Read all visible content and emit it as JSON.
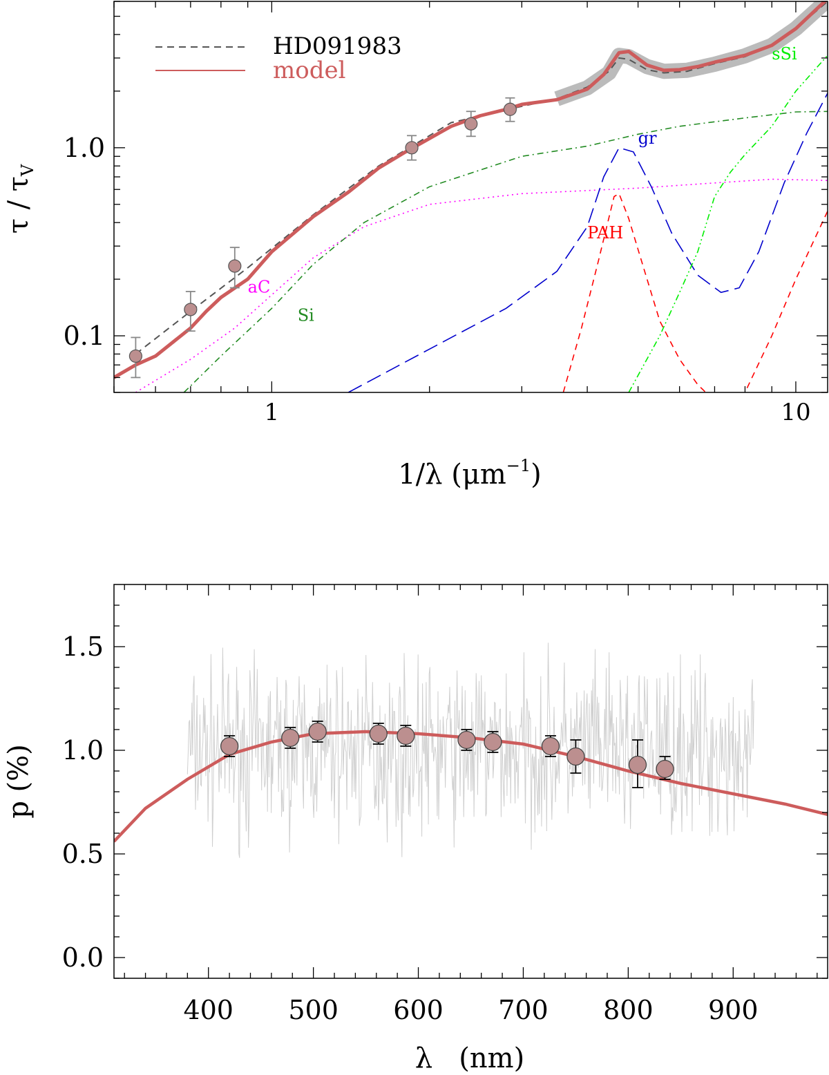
{
  "chart_data": [
    {
      "type": "line",
      "title": "",
      "xlabel": "1/λ (μm",
      "xlabel_sup": "−1",
      "xlabel_close": ")",
      "ylabel": "τ / τ",
      "ylabel_sub": "V",
      "xscale": "log",
      "yscale": "log",
      "xlim": [
        0.5,
        11.5
      ],
      "ylim": [
        0.05,
        6
      ],
      "xticks": [
        {
          "v": 1,
          "label": "1"
        },
        {
          "v": 10,
          "label": "10"
        }
      ],
      "yticks": [
        {
          "v": 0.1,
          "label": "0.1"
        },
        {
          "v": 1.0,
          "label": "1.0"
        }
      ],
      "legend": {
        "position": "top-left",
        "entries": [
          {
            "label": "HD091983",
            "color": "#555555",
            "style": "dashed"
          },
          {
            "label": "model",
            "color": "#cd5c5c",
            "style": "solid"
          }
        ]
      },
      "series": [
        {
          "name": "HD091983",
          "role": "observed",
          "color": "#555555",
          "x": [
            0.55,
            0.7,
            0.9,
            1.2,
            1.6,
            2.2,
            3.0,
            3.5,
            4.0,
            4.4,
            4.6,
            4.8,
            5.2,
            5.6,
            6.2,
            7.0,
            8.0,
            9.0,
            10.0,
            11.5
          ],
          "y": [
            0.08,
            0.135,
            0.23,
            0.44,
            0.8,
            1.36,
            1.66,
            1.82,
            2.1,
            2.55,
            3.0,
            2.95,
            2.6,
            2.5,
            2.55,
            2.8,
            3.05,
            3.5,
            4.3,
            6.0
          ]
        },
        {
          "name": "model",
          "role": "model",
          "color": "#cd5c5c",
          "x": [
            0.5,
            0.55,
            0.6,
            0.7,
            0.75,
            0.8,
            0.9,
            1.0,
            1.2,
            1.4,
            1.6,
            1.8,
            2.0,
            2.2,
            2.5,
            2.8,
            3.0,
            3.5,
            4.0,
            4.3,
            4.6,
            4.8,
            5.2,
            5.6,
            6.0,
            6.5,
            7.0,
            8.0,
            9.0,
            10.0,
            11.5
          ],
          "y": [
            0.06,
            0.07,
            0.078,
            0.11,
            0.135,
            0.16,
            0.2,
            0.28,
            0.43,
            0.58,
            0.78,
            0.95,
            1.12,
            1.3,
            1.48,
            1.6,
            1.7,
            1.8,
            2.05,
            2.45,
            3.2,
            3.25,
            2.75,
            2.58,
            2.6,
            2.7,
            2.85,
            3.1,
            3.5,
            4.3,
            6.2
          ]
        },
        {
          "name": "aC",
          "role": "component",
          "color": "#ff00ff",
          "style": "dotted",
          "x": [
            0.55,
            0.7,
            0.85,
            1.0,
            1.2,
            1.5,
            2.0,
            3.0,
            5.0,
            7.0,
            9.0,
            11.5
          ],
          "y": [
            0.05,
            0.075,
            0.11,
            0.165,
            0.26,
            0.38,
            0.5,
            0.57,
            0.61,
            0.65,
            0.68,
            0.67
          ]
        },
        {
          "name": "Si",
          "role": "component",
          "color": "#228b22",
          "style": "dashdot",
          "x": [
            0.68,
            0.8,
            1.0,
            1.2,
            1.5,
            2.0,
            3.0,
            4.0,
            5.0,
            6.0,
            8.0,
            10.0,
            11.5
          ],
          "y": [
            0.05,
            0.078,
            0.14,
            0.24,
            0.4,
            0.62,
            0.9,
            1.02,
            1.18,
            1.3,
            1.44,
            1.55,
            1.56
          ]
        },
        {
          "name": "gr",
          "role": "component",
          "color": "#0000cd",
          "style": "longdash",
          "x": [
            1.4,
            2.0,
            2.8,
            3.5,
            4.0,
            4.3,
            4.6,
            4.9,
            5.3,
            5.8,
            6.5,
            7.2,
            7.8,
            8.5,
            9.5,
            10.5,
            11.5
          ],
          "y": [
            0.05,
            0.085,
            0.14,
            0.22,
            0.38,
            0.7,
            1.0,
            0.95,
            0.62,
            0.35,
            0.21,
            0.17,
            0.18,
            0.28,
            0.65,
            1.2,
            1.95
          ]
        },
        {
          "name": "PAH",
          "role": "component",
          "color": "#ff0000",
          "style": "dashed",
          "x": [
            3.6,
            3.9,
            4.2,
            4.5,
            4.6,
            4.8,
            5.1,
            5.5,
            6.0,
            6.5,
            7.0,
            7.5,
            8.0,
            9.0,
            10.0,
            11.5
          ],
          "y": [
            0.05,
            0.11,
            0.25,
            0.55,
            0.57,
            0.42,
            0.24,
            0.12,
            0.075,
            0.055,
            0.045,
            0.04,
            0.05,
            0.1,
            0.2,
            0.46
          ]
        },
        {
          "name": "sSi",
          "role": "component",
          "color": "#00ee00",
          "style": "dashdotdot",
          "x": [
            4.8,
            5.5,
            6.0,
            6.5,
            7.0,
            7.5,
            8.0,
            9.0,
            10.0,
            11.5
          ],
          "y": [
            0.05,
            0.1,
            0.17,
            0.28,
            0.55,
            0.74,
            0.92,
            1.3,
            2.0,
            3.1
          ]
        },
        {
          "name": "UV data band",
          "role": "band",
          "color": "#bbbbbb",
          "x": [
            3.5,
            4.0,
            4.4,
            4.6,
            4.8,
            5.2,
            5.6,
            6.2,
            7.0,
            8.0,
            9.0,
            10.0,
            11.5
          ],
          "y": [
            1.82,
            2.08,
            2.5,
            3.1,
            3.05,
            2.7,
            2.55,
            2.58,
            2.78,
            3.08,
            3.5,
            4.3,
            6.1
          ]
        }
      ],
      "points": [
        {
          "x": 0.55,
          "y": 0.078,
          "err": [
            0.06,
            0.098
          ]
        },
        {
          "x": 0.7,
          "y": 0.138,
          "err": [
            0.106,
            0.172
          ]
        },
        {
          "x": 0.85,
          "y": 0.235,
          "err": [
            0.18,
            0.295
          ]
        },
        {
          "x": 1.85,
          "y": 1.0,
          "err": [
            0.86,
            1.16
          ]
        },
        {
          "x": 2.4,
          "y": 1.34,
          "err": [
            1.15,
            1.56
          ]
        },
        {
          "x": 2.85,
          "y": 1.6,
          "err": [
            1.38,
            1.84
          ]
        }
      ],
      "annotations": [
        {
          "text": "aC",
          "x": 0.9,
          "y": 0.17,
          "color": "#ff00ff"
        },
        {
          "text": "Si",
          "x": 1.12,
          "y": 0.12,
          "color": "#228b22"
        },
        {
          "text": "gr",
          "x": 5.0,
          "y": 1.05,
          "color": "#0000cd"
        },
        {
          "text": "PAH",
          "x": 4.0,
          "y": 0.33,
          "color": "#ff0000"
        },
        {
          "text": "sSi",
          "x": 9.0,
          "y": 2.95,
          "color": "#00ee00"
        }
      ]
    },
    {
      "type": "scatter",
      "title": "",
      "xlabel": "λ   (nm)",
      "ylabel": "p (%)",
      "xlim": [
        310,
        990
      ],
      "ylim": [
        -0.1,
        1.8
      ],
      "xticks": [
        {
          "v": 400,
          "label": "400"
        },
        {
          "v": 500,
          "label": "500"
        },
        {
          "v": 600,
          "label": "600"
        },
        {
          "v": 700,
          "label": "700"
        },
        {
          "v": 800,
          "label": "800"
        },
        {
          "v": 900,
          "label": "900"
        }
      ],
      "yticks": [
        {
          "v": 0.0,
          "label": "0.0"
        },
        {
          "v": 0.5,
          "label": "0.5"
        },
        {
          "v": 1.0,
          "label": "1.0"
        },
        {
          "v": 1.5,
          "label": "1.5"
        }
      ],
      "series": [
        {
          "name": "model",
          "role": "model",
          "color": "#cd5c5c",
          "x": [
            310,
            340,
            380,
            420,
            460,
            500,
            550,
            600,
            650,
            700,
            750,
            800,
            850,
            900,
            950,
            990
          ],
          "y": [
            0.56,
            0.72,
            0.86,
            0.98,
            1.04,
            1.08,
            1.09,
            1.08,
            1.06,
            1.03,
            0.97,
            0.9,
            0.84,
            0.79,
            0.74,
            0.69
          ]
        },
        {
          "name": "spectrum",
          "role": "noise",
          "color": "#cccccc",
          "x_range": [
            380,
            920
          ],
          "mean": 1.0,
          "spread": 0.32
        }
      ],
      "points": [
        {
          "x": 420,
          "y": 1.02,
          "err": [
            0.97,
            1.07
          ]
        },
        {
          "x": 478,
          "y": 1.06,
          "err": [
            1.01,
            1.11
          ]
        },
        {
          "x": 504,
          "y": 1.09,
          "err": [
            1.04,
            1.14
          ]
        },
        {
          "x": 562,
          "y": 1.08,
          "err": [
            1.03,
            1.13
          ]
        },
        {
          "x": 588,
          "y": 1.07,
          "err": [
            1.02,
            1.12
          ]
        },
        {
          "x": 646,
          "y": 1.05,
          "err": [
            1.0,
            1.1
          ]
        },
        {
          "x": 671,
          "y": 1.04,
          "err": [
            0.99,
            1.09
          ]
        },
        {
          "x": 726,
          "y": 1.02,
          "err": [
            0.97,
            1.07
          ]
        },
        {
          "x": 750,
          "y": 0.97,
          "err": [
            0.89,
            1.05
          ]
        },
        {
          "x": 809,
          "y": 0.93,
          "err": [
            0.82,
            1.05
          ]
        },
        {
          "x": 835,
          "y": 0.91,
          "err": [
            0.86,
            0.97
          ]
        }
      ]
    }
  ]
}
